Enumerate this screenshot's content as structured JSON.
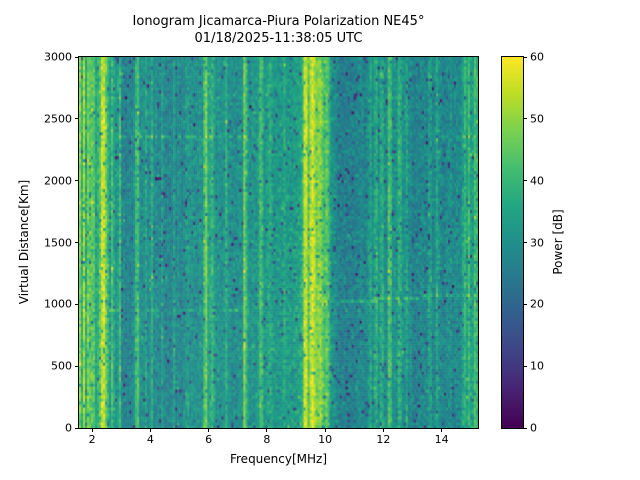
{
  "figure": {
    "title_line1": "Ionogram Jicamarca-Piura Polarization NE45°",
    "title_line2": "01/18/2025-11:38:05 UTC",
    "background_color": "#ffffff"
  },
  "chart_data": {
    "type": "heatmap",
    "title": "Ionogram Jicamarca-Piura Polarization NE45°",
    "subtitle": "01/18/2025-11:38:05 UTC",
    "xlabel": "Frequency[MHz]",
    "ylabel": "Virtual Distance[Km]",
    "colorbar_label": "Power [dB]",
    "xlim": [
      1.55,
      15.25
    ],
    "ylim": [
      0,
      3000
    ],
    "clim": [
      0,
      60
    ],
    "xticks": [
      2,
      4,
      6,
      8,
      10,
      12,
      14
    ],
    "yticks": [
      0,
      500,
      1000,
      1500,
      2000,
      2500,
      3000
    ],
    "colorbar_ticks": [
      0,
      10,
      20,
      30,
      40,
      50,
      60
    ],
    "colormap": "viridis",
    "colormap_stops": [
      [
        0.0,
        [
          68,
          1,
          84
        ]
      ],
      [
        0.1,
        [
          72,
          35,
          116
        ]
      ],
      [
        0.2,
        [
          64,
          67,
          135
        ]
      ],
      [
        0.3,
        [
          52,
          94,
          141
        ]
      ],
      [
        0.4,
        [
          41,
          120,
          142
        ]
      ],
      [
        0.5,
        [
          32,
          144,
          140
        ]
      ],
      [
        0.6,
        [
          34,
          167,
          132
        ]
      ],
      [
        0.7,
        [
          68,
          190,
          112
        ]
      ],
      [
        0.8,
        [
          121,
          209,
          81
        ]
      ],
      [
        0.9,
        [
          189,
          222,
          38
        ]
      ],
      [
        1.0,
        [
          253,
          231,
          37
        ]
      ]
    ],
    "grid_resolution": {
      "cols": 199,
      "rows": 124,
      "seed": 20250118
    },
    "noise": {
      "std_db": 4.5,
      "dark_speck_prob": 0.035,
      "dark_speck_depth_db": 12,
      "bright_speck_prob": 0.01,
      "bright_speck_db": 8
    },
    "background_profile_db": [
      [
        1.55,
        35
      ],
      [
        2.0,
        35
      ],
      [
        2.5,
        35
      ],
      [
        2.85,
        31
      ],
      [
        3.1,
        27
      ],
      [
        3.5,
        29
      ],
      [
        4.0,
        29
      ],
      [
        4.6,
        28
      ],
      [
        5.2,
        28
      ],
      [
        5.8,
        31
      ],
      [
        6.3,
        30
      ],
      [
        6.9,
        30
      ],
      [
        7.5,
        31
      ],
      [
        8.2,
        32
      ],
      [
        8.9,
        33
      ],
      [
        9.3,
        36
      ],
      [
        9.8,
        37
      ],
      [
        10.15,
        32
      ],
      [
        10.5,
        27
      ],
      [
        11.0,
        26
      ],
      [
        11.6,
        29
      ],
      [
        12.0,
        30
      ],
      [
        12.35,
        30
      ],
      [
        12.7,
        30
      ],
      [
        13.1,
        27
      ],
      [
        13.5,
        28
      ],
      [
        13.9,
        29
      ],
      [
        14.3,
        27
      ],
      [
        14.7,
        30
      ],
      [
        15.0,
        32
      ],
      [
        15.25,
        32
      ]
    ],
    "rfi_stripes": [
      {
        "freq_mhz": 1.6,
        "sigma": 0.025,
        "peak_db": 16
      },
      {
        "freq_mhz": 1.72,
        "sigma": 0.025,
        "peak_db": 18
      },
      {
        "freq_mhz": 1.84,
        "sigma": 0.025,
        "peak_db": 15
      },
      {
        "freq_mhz": 1.96,
        "sigma": 0.03,
        "peak_db": 18
      },
      {
        "freq_mhz": 2.08,
        "sigma": 0.025,
        "peak_db": 12
      },
      {
        "freq_mhz": 2.38,
        "sigma": 0.09,
        "peak_db": 21
      },
      {
        "freq_mhz": 2.7,
        "sigma": 0.03,
        "peak_db": 10
      },
      {
        "freq_mhz": 2.95,
        "sigma": 0.03,
        "peak_db": 12
      },
      {
        "freq_mhz": 3.55,
        "sigma": 0.035,
        "peak_db": 21
      },
      {
        "freq_mhz": 3.83,
        "sigma": 0.03,
        "peak_db": 6
      },
      {
        "freq_mhz": 4.07,
        "sigma": 0.03,
        "peak_db": 7
      },
      {
        "freq_mhz": 4.4,
        "sigma": 0.03,
        "peak_db": 6
      },
      {
        "freq_mhz": 4.8,
        "sigma": 0.03,
        "peak_db": 7
      },
      {
        "freq_mhz": 5.27,
        "sigma": 0.03,
        "peak_db": 7
      },
      {
        "freq_mhz": 5.9,
        "sigma": 0.04,
        "peak_db": 21
      },
      {
        "freq_mhz": 6.12,
        "sigma": 0.06,
        "peak_db": 9
      },
      {
        "freq_mhz": 6.6,
        "sigma": 0.03,
        "peak_db": 9
      },
      {
        "freq_mhz": 7.25,
        "sigma": 0.035,
        "peak_db": 21
      },
      {
        "freq_mhz": 7.8,
        "sigma": 0.05,
        "peak_db": 11
      },
      {
        "freq_mhz": 8.1,
        "sigma": 0.03,
        "peak_db": 7
      },
      {
        "freq_mhz": 8.6,
        "sigma": 0.03,
        "peak_db": 6
      },
      {
        "freq_mhz": 9.33,
        "sigma": 0.05,
        "peak_db": 23
      },
      {
        "freq_mhz": 9.55,
        "sigma": 0.07,
        "peak_db": 18
      },
      {
        "freq_mhz": 9.82,
        "sigma": 0.17,
        "peak_db": 13
      },
      {
        "freq_mhz": 10.08,
        "sigma": 0.04,
        "peak_db": 9
      },
      {
        "freq_mhz": 11.55,
        "sigma": 0.05,
        "peak_db": 8
      },
      {
        "freq_mhz": 11.75,
        "sigma": 0.04,
        "peak_db": 9
      },
      {
        "freq_mhz": 11.95,
        "sigma": 0.04,
        "peak_db": 8
      },
      {
        "freq_mhz": 12.22,
        "sigma": 0.035,
        "peak_db": 19
      },
      {
        "freq_mhz": 12.55,
        "sigma": 0.05,
        "peak_db": 10
      },
      {
        "freq_mhz": 12.8,
        "sigma": 0.04,
        "peak_db": 8
      },
      {
        "freq_mhz": 13.6,
        "sigma": 0.035,
        "peak_db": 8
      },
      {
        "freq_mhz": 13.85,
        "sigma": 0.035,
        "peak_db": 8
      },
      {
        "freq_mhz": 14.3,
        "sigma": 0.03,
        "peak_db": 5
      },
      {
        "freq_mhz": 14.8,
        "sigma": 0.05,
        "peak_db": 10
      },
      {
        "freq_mhz": 14.95,
        "sigma": 0.04,
        "peak_db": 10
      },
      {
        "freq_mhz": 15.15,
        "sigma": 0.05,
        "peak_db": 11
      }
    ],
    "echo_traces": [
      {
        "km_start": 2360,
        "km_end": 2360,
        "f1": 2.9,
        "f2": 7.7,
        "boost_db": 9,
        "gate": 0.6
      },
      {
        "km_start": 2350,
        "km_end": 2350,
        "f1": 13.1,
        "f2": 15.0,
        "boost_db": 6,
        "gate": 0.5
      },
      {
        "km_start": 1015,
        "km_end": 1090,
        "f1": 9.9,
        "f2": 15.25,
        "boost_db": 8,
        "gate": 0.85
      },
      {
        "km_start": 950,
        "km_end": 960,
        "f1": 2.3,
        "f2": 7.5,
        "boost_db": 4,
        "gate": 0.7
      }
    ]
  }
}
